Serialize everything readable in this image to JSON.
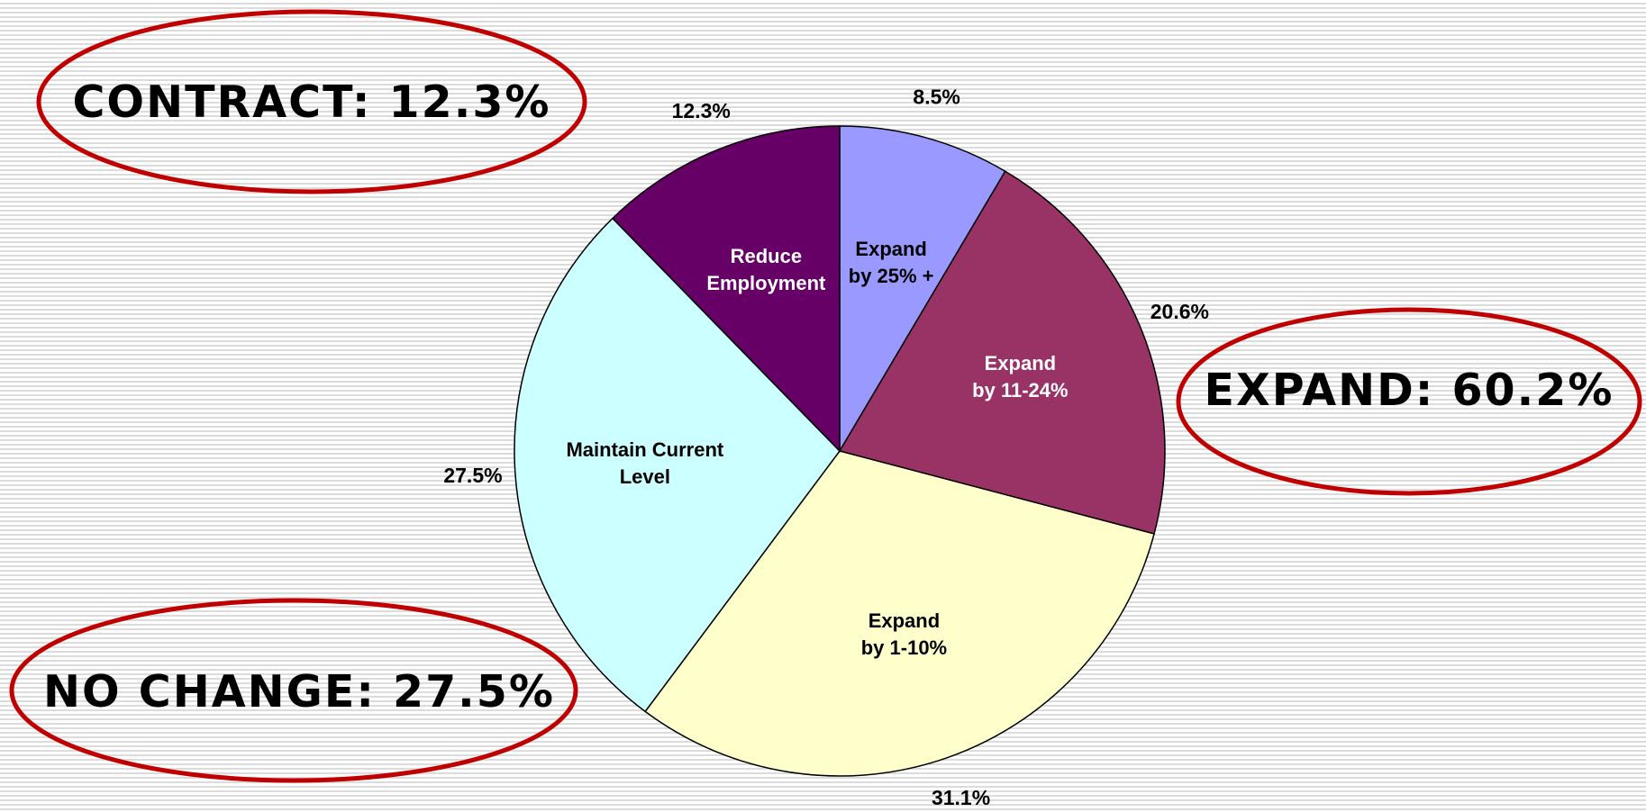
{
  "chart_data": {
    "type": "pie",
    "categories": [
      "Expand\nby 25% +",
      "Expand\nby 11-24%",
      "Expand\nby 1-10%",
      "Maintain Current\nLevel",
      "Reduce\nEmployment"
    ],
    "series": [
      {
        "colors": [
          "#9999ff",
          "#993366",
          "#ffffcc",
          "#ccffff",
          "#660066"
        ],
        "values": [
          8.5,
          20.6,
          31.1,
          27.5,
          12.3
        ],
        "value_labels": [
          "8.5%",
          "20.6%",
          "31.1%",
          "27.5%",
          "12.3%"
        ]
      }
    ],
    "annotations": [
      "CONTRACT: 12.3%",
      "EXPAND: 60.2%",
      "NO CHANGE: 27.5%"
    ]
  }
}
